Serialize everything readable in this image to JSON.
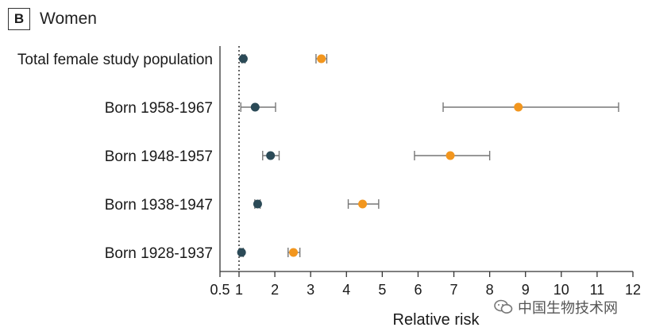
{
  "panel": {
    "letter": "B",
    "title": "Women"
  },
  "colors": {
    "series_dark": "#2b4a57",
    "series_orange": "#f2961e",
    "whisker": "#777777",
    "axis": "#333333"
  },
  "chart_data": {
    "type": "forest",
    "xlabel": "Relative risk",
    "ylabel": "",
    "xlim": [
      0.5,
      12
    ],
    "xticks": [
      0.5,
      1,
      2,
      3,
      4,
      5,
      6,
      7,
      8,
      9,
      10,
      11,
      12
    ],
    "xtick_labels": [
      "0.5",
      "1",
      "2",
      "3",
      "4",
      "5",
      "6",
      "7",
      "8",
      "9",
      "10",
      "11",
      "12"
    ],
    "reference_line": 1,
    "categories": [
      "Total female study population",
      "Born 1958-1967",
      "Born 1948-1957",
      "Born 1938-1947",
      "Born 1928-1937"
    ],
    "series": [
      {
        "color": "#2b4a57",
        "points": [
          {
            "value": 1.12,
            "low": 1.08,
            "high": 1.17
          },
          {
            "value": 1.45,
            "low": 1.05,
            "high": 2.02
          },
          {
            "value": 1.88,
            "low": 1.66,
            "high": 2.12
          },
          {
            "value": 1.52,
            "low": 1.44,
            "high": 1.59
          },
          {
            "value": 1.07,
            "low": 1.02,
            "high": 1.12
          }
        ]
      },
      {
        "color": "#f2961e",
        "points": [
          {
            "value": 3.3,
            "low": 3.15,
            "high": 3.45
          },
          {
            "value": 8.8,
            "low": 6.7,
            "high": 11.6
          },
          {
            "value": 6.9,
            "low": 5.9,
            "high": 8.0
          },
          {
            "value": 4.45,
            "low": 4.05,
            "high": 4.9
          },
          {
            "value": 2.52,
            "low": 2.37,
            "high": 2.7
          }
        ]
      }
    ]
  },
  "watermark": {
    "text": "中国生物技术网",
    "icon": "wechat-icon"
  }
}
